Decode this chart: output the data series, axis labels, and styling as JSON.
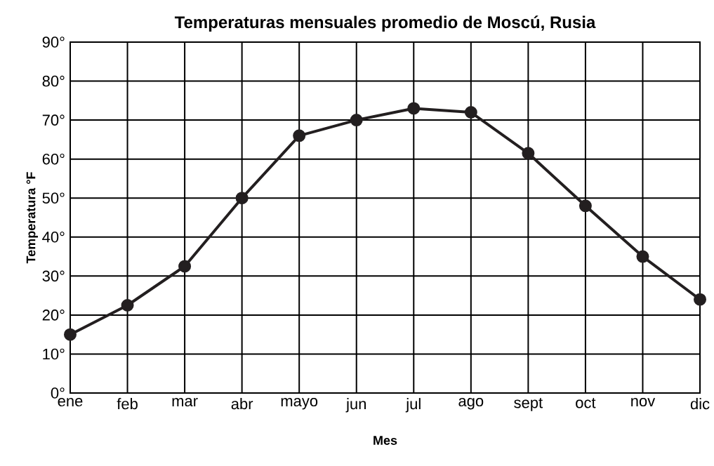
{
  "chart_data": {
    "type": "line",
    "title": "Temperaturas mensuales promedio de Moscú, Rusia",
    "xlabel": "Mes",
    "ylabel": "Temperatura °F",
    "categories": [
      "ene",
      "feb",
      "mar",
      "abr",
      "mayo",
      "jun",
      "jul",
      "ago",
      "sept",
      "oct",
      "nov",
      "dic"
    ],
    "values": [
      15,
      22.5,
      32.5,
      50,
      66,
      70,
      73,
      72,
      61.5,
      48,
      35,
      24
    ],
    "color": "#231f20",
    "marker": "circle",
    "line_style": "solid",
    "grid": true,
    "ylim": [
      0,
      90
    ],
    "yticks": [
      {
        "value": 0,
        "label": "0°"
      },
      {
        "value": 10,
        "label": "10°"
      },
      {
        "value": 20,
        "label": "20°"
      },
      {
        "value": 30,
        "label": "30°"
      },
      {
        "value": 40,
        "label": "40°"
      },
      {
        "value": 50,
        "label": "50°"
      },
      {
        "value": 60,
        "label": "60°"
      },
      {
        "value": 70,
        "label": "70°"
      },
      {
        "value": 80,
        "label": "80°"
      },
      {
        "value": 90,
        "label": "90°"
      }
    ]
  }
}
